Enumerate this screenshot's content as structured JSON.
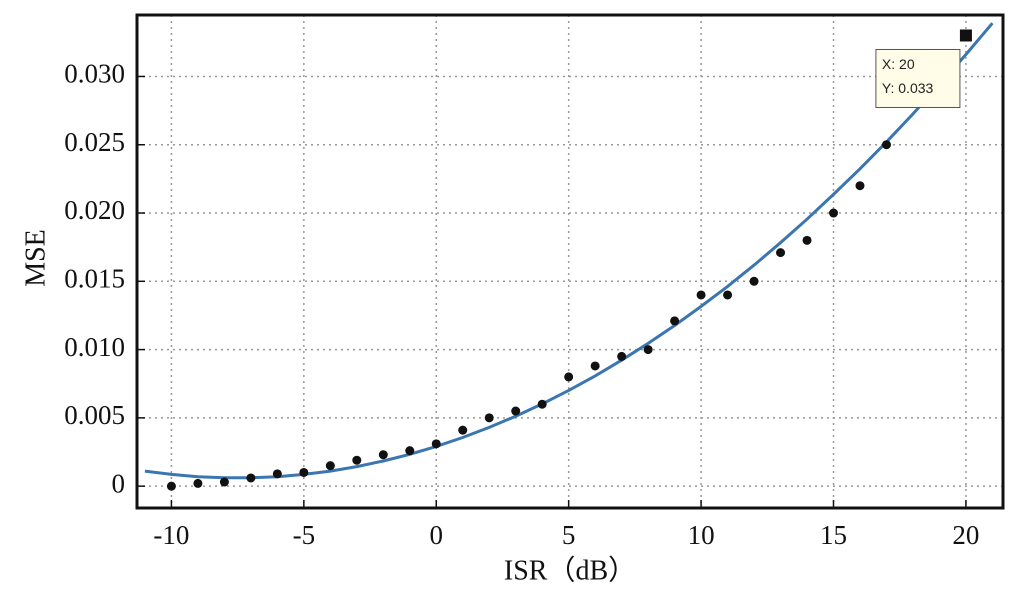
{
  "chart_data": {
    "type": "scatter",
    "xlabel": "ISR（dB）",
    "ylabel": "MSE",
    "xlim": [
      -11.3,
      21.4
    ],
    "ylim": [
      -0.0016,
      0.0345
    ],
    "xticks": [
      -10,
      -5,
      0,
      5,
      10,
      15,
      20
    ],
    "yticks": [
      0,
      0.005,
      {
        "value": 0.01,
        "label": "0.010"
      },
      0.015,
      {
        "value": 0.02,
        "label": "0.020"
      },
      0.025,
      {
        "value": 0.03,
        "label": "0.030"
      }
    ],
    "grid": true,
    "series": [
      {
        "x": [
          -10,
          -9,
          -8,
          -7,
          -6,
          -5,
          -4,
          -3,
          -2,
          -1,
          0,
          1,
          2,
          3,
          4,
          5,
          6,
          7,
          8,
          9,
          10,
          11,
          12,
          13,
          14,
          15,
          16,
          17
        ],
        "values": [
          0.0,
          0.0002,
          0.0003,
          0.0006,
          0.0009,
          0.001,
          0.0015,
          0.0019,
          0.0023,
          0.0026,
          0.0031,
          0.0041,
          0.005,
          0.0055,
          0.006,
          0.008,
          0.0088,
          0.0095,
          0.01,
          0.0121,
          0.014,
          0.014,
          0.015,
          0.0171,
          0.018,
          0.02,
          0.022,
          0.025
        ],
        "color": "#111111"
      }
    ],
    "fit": {
      "x": [
        -11,
        -10,
        -9,
        -8,
        -7,
        -6,
        -5,
        -4,
        -3,
        -2,
        -1,
        0,
        1,
        2,
        3,
        4,
        5,
        6,
        7,
        8,
        9,
        10,
        11,
        12,
        13,
        14,
        15,
        16,
        17,
        18,
        19,
        20,
        21
      ],
      "values": [
        0.0011,
        0.00086,
        0.00069,
        0.00061,
        0.00061,
        0.00069,
        0.00086,
        0.0011,
        0.00143,
        0.00184,
        0.00233,
        0.00291,
        0.00356,
        0.0043,
        0.00512,
        0.00602,
        0.00701,
        0.00807,
        0.00922,
        0.01045,
        0.01176,
        0.01316,
        0.01463,
        0.01619,
        0.01783,
        0.01955,
        0.02136,
        0.02324,
        0.02521,
        0.02726,
        0.02939,
        0.03161,
        0.0339
      ],
      "color": "#3b76b0"
    },
    "highlight": {
      "x": 20,
      "y": 0.033,
      "color": "#111111",
      "datatip": [
        "X: 20",
        "Y: 0.033"
      ]
    }
  }
}
